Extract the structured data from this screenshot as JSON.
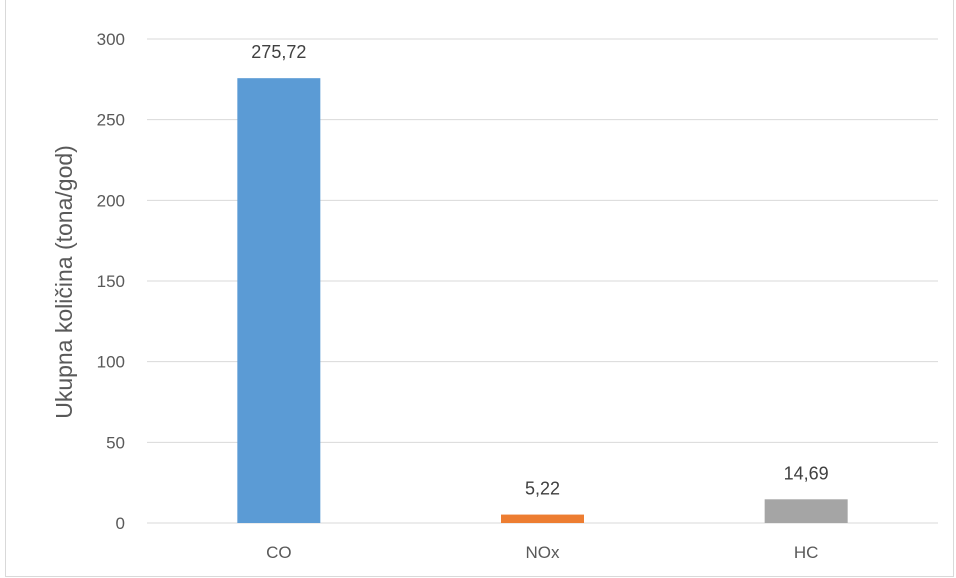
{
  "chart_data": {
    "type": "bar",
    "categories": [
      "CO",
      "NOx",
      "HC"
    ],
    "values": [
      275.72,
      5.22,
      14.69
    ],
    "data_labels": [
      "275,72",
      "5,22",
      "14,69"
    ],
    "ylabel": "Ukupna količina (tona/god)",
    "ylim": [
      0,
      300
    ],
    "yticks": [
      "0",
      "50",
      "100",
      "150",
      "200",
      "250",
      "300"
    ],
    "colors": [
      "#5b9bd5",
      "#ed7d31",
      "#a5a5a5"
    ],
    "grid": true,
    "legend": "none"
  }
}
